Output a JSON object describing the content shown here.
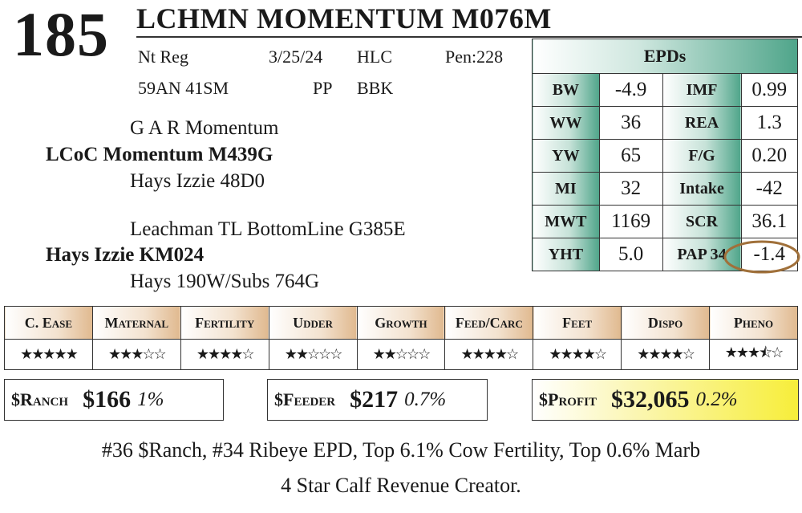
{
  "lot": "185",
  "title": "LCHMN MOMENTUM M076M",
  "info": {
    "reg": "Nt Reg",
    "date": "3/25/24",
    "code1": "HLC",
    "pen": "Pen:228",
    "tattoo": "59AN 41SM",
    "pp": "PP",
    "code2": "BBK"
  },
  "pedigree": {
    "sire_sire": "G A R Momentum",
    "sire": "LCoC Momentum M439G",
    "sire_dam": "Hays Izzie 48D0",
    "dam_sire": "Leachman TL BottomLine G385E",
    "dam": "Hays Izzie KM024",
    "dam_dam": "Hays 190W/Subs 764G"
  },
  "epds": {
    "title": "EPDs",
    "rows": [
      {
        "l1": "BW",
        "v1": "-4.9",
        "l2": "IMF",
        "v2": "0.99"
      },
      {
        "l1": "WW",
        "v1": "36",
        "l2": "REA",
        "v2": "1.3"
      },
      {
        "l1": "YW",
        "v1": "65",
        "l2": "F/G",
        "v2": "0.20"
      },
      {
        "l1": "MI",
        "v1": "32",
        "l2": "Intake",
        "v2": "-42"
      },
      {
        "l1": "MWT",
        "v1": "1169",
        "l2": "SCR",
        "v2": "36.1"
      },
      {
        "l1": "YHT",
        "v1": "5.0",
        "l2": "PAP 34",
        "v2": "-1.4"
      }
    ]
  },
  "traits": [
    {
      "name": "C. Ease",
      "stars": 5
    },
    {
      "name": "Maternal",
      "stars": 3
    },
    {
      "name": "Fertility",
      "stars": 4
    },
    {
      "name": "Udder",
      "stars": 2
    },
    {
      "name": "Growth",
      "stars": 2
    },
    {
      "name": "Feed/Carc",
      "stars": 4
    },
    {
      "name": "Feet",
      "stars": 4
    },
    {
      "name": "Dispo",
      "stars": 4
    },
    {
      "name": "Pheno",
      "stars": 3.5
    }
  ],
  "indexes": {
    "ranch": {
      "label": "$Ranch",
      "value": "$166",
      "pct": "1%"
    },
    "feeder": {
      "label": "$Feeder",
      "value": "$217",
      "pct": "0.7%"
    },
    "profit": {
      "label": "$Profit",
      "value": "$32,065",
      "pct": "0.2%"
    }
  },
  "footer": {
    "line1": "#36 $Ranch, #34 Ribeye EPD, Top 6.1% Cow Fertility, Top 0.6% Marb",
    "line2": "4 Star Calf Revenue Creator."
  },
  "colors": {
    "epd_accent": "#4fa58a",
    "trait_accent": "#e0b98f",
    "profit_bg": "#f7ee3a",
    "circle": "#a0703a"
  }
}
